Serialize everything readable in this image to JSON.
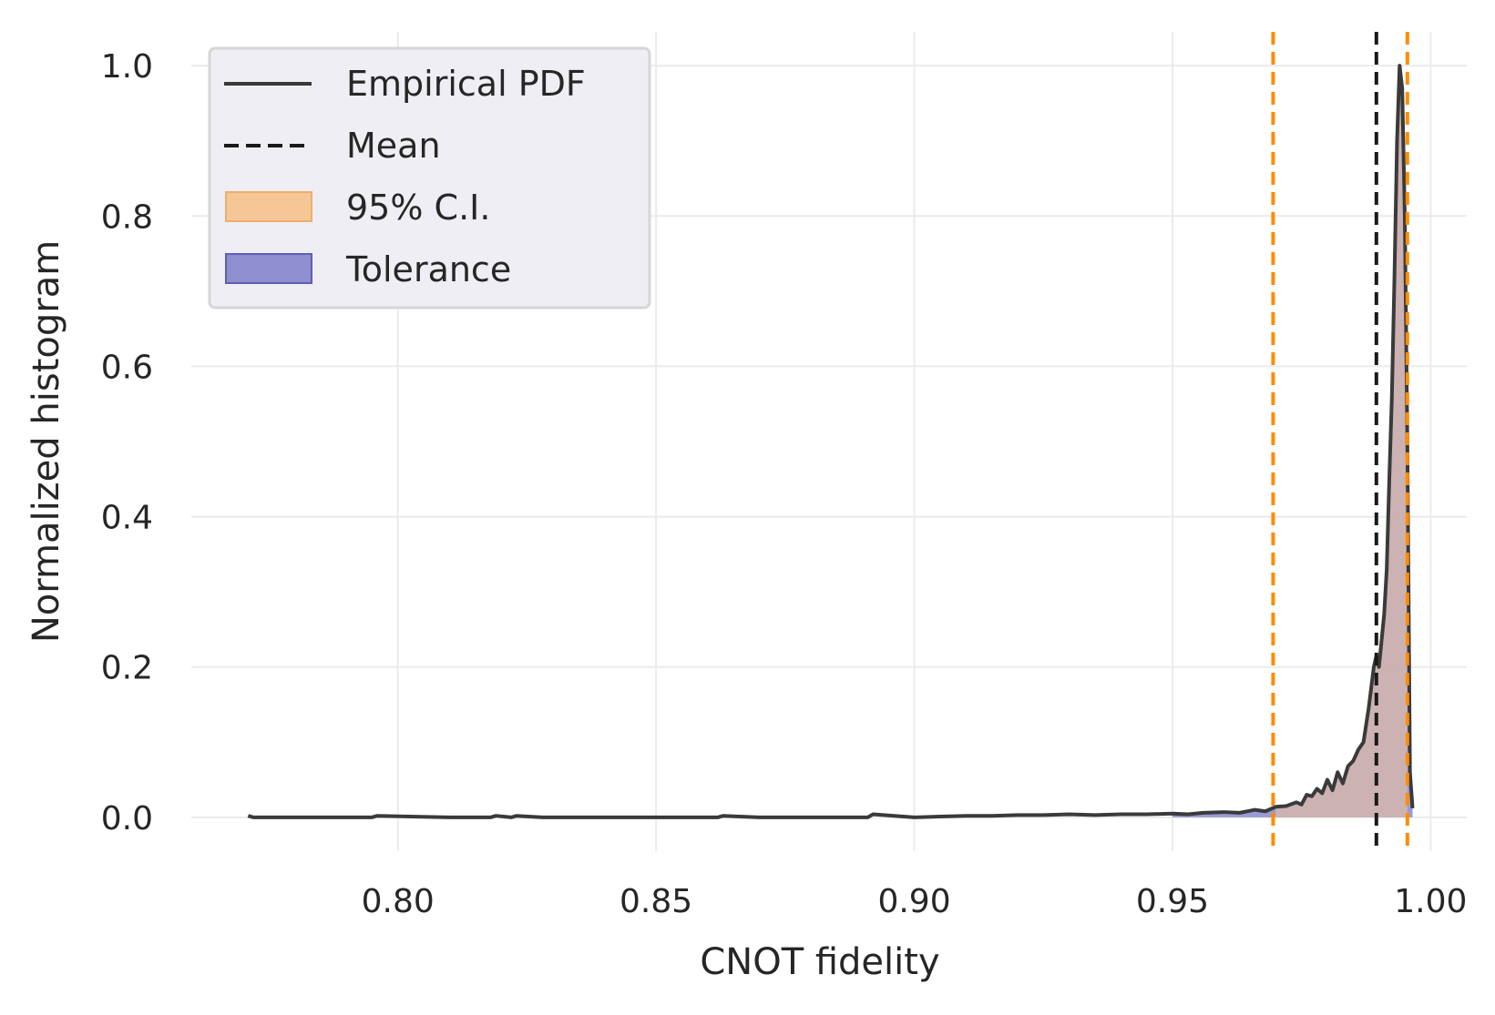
{
  "chart_data": {
    "type": "line",
    "title": "",
    "xlabel": "CNOT fidelity",
    "ylabel": "Normalized histogram",
    "xlim": [
      0.76,
      1.007
    ],
    "ylim": [
      -0.045,
      1.045
    ],
    "xticks": [
      0.8,
      0.85,
      0.9,
      0.95,
      1.0
    ],
    "xtick_labels": [
      "0.80",
      "0.85",
      "0.90",
      "0.95",
      "1.00"
    ],
    "yticks": [
      0.0,
      0.2,
      0.4,
      0.6,
      0.8,
      1.0
    ],
    "ytick_labels": [
      "0.0",
      "0.2",
      "0.4",
      "0.6",
      "0.8",
      "1.0"
    ],
    "grid": true,
    "legend_position": "top-left",
    "legend": [
      {
        "label": "Empirical PDF",
        "kind": "line",
        "color": "#3a3a3a"
      },
      {
        "label": "Mean",
        "kind": "dashed-line",
        "color": "#1a1a1a"
      },
      {
        "label": "95% C.I.",
        "kind": "patch",
        "color": "#f5c796"
      },
      {
        "label": "Tolerance",
        "kind": "patch",
        "color": "#8f8fcf"
      }
    ],
    "series": [
      {
        "name": "Empirical PDF",
        "color": "#3a3a3a",
        "x": [
          0.771,
          0.772,
          0.78,
          0.795,
          0.796,
          0.81,
          0.818,
          0.819,
          0.822,
          0.823,
          0.828,
          0.84,
          0.862,
          0.863,
          0.87,
          0.875,
          0.88,
          0.888,
          0.891,
          0.892,
          0.9,
          0.905,
          0.91,
          0.915,
          0.92,
          0.925,
          0.93,
          0.935,
          0.94,
          0.945,
          0.95,
          0.953,
          0.956,
          0.96,
          0.963,
          0.966,
          0.968,
          0.97,
          0.972,
          0.974,
          0.975,
          0.976,
          0.977,
          0.978,
          0.979,
          0.98,
          0.981,
          0.982,
          0.983,
          0.984,
          0.985,
          0.986,
          0.987,
          0.988,
          0.989,
          0.9895,
          0.99,
          0.9905,
          0.991,
          0.9915,
          0.992,
          0.9925,
          0.993,
          0.9935,
          0.994,
          0.9945,
          0.995,
          0.9955,
          0.996,
          0.9965
        ],
        "y": [
          0.002,
          0.0,
          0.0,
          0.0,
          0.002,
          0.0,
          0.0,
          0.002,
          0.0,
          0.002,
          0.0,
          0.0,
          0.0,
          0.002,
          0.0,
          0.0,
          0.0,
          0.0,
          0.0,
          0.004,
          0.0,
          0.001,
          0.002,
          0.002,
          0.003,
          0.003,
          0.004,
          0.003,
          0.004,
          0.004,
          0.005,
          0.004,
          0.006,
          0.007,
          0.006,
          0.01,
          0.008,
          0.014,
          0.015,
          0.02,
          0.017,
          0.03,
          0.028,
          0.038,
          0.032,
          0.05,
          0.036,
          0.06,
          0.045,
          0.068,
          0.075,
          0.09,
          0.1,
          0.145,
          0.2,
          0.215,
          0.2,
          0.235,
          0.27,
          0.33,
          0.45,
          0.56,
          0.72,
          0.9,
          1.0,
          0.97,
          0.8,
          0.5,
          0.06,
          0.012
        ]
      }
    ],
    "vlines": [
      {
        "name": "Mean",
        "x": 0.9895,
        "color": "#1a1a1a",
        "style": "dashed"
      },
      {
        "name": "95% C.I. lower",
        "x": 0.9695,
        "color": "#ff8c00",
        "style": "dashed"
      },
      {
        "name": "95% C.I. upper",
        "x": 0.9955,
        "color": "#ff8c00",
        "style": "dashed"
      }
    ],
    "fills": [
      {
        "name": "Tolerance",
        "color": "#8f8fcf",
        "x_from": 0.95,
        "x_to": 0.9965
      },
      {
        "name": "95% C.I.",
        "color": "#f5c796",
        "x_from": 0.9695,
        "x_to": 0.9955
      }
    ]
  }
}
